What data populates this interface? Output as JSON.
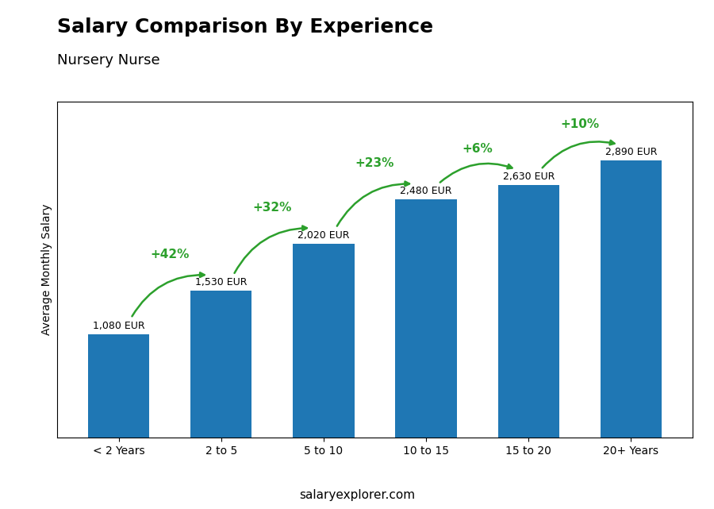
{
  "chart_data": {
    "type": "bar",
    "title": "Salary Comparison By Experience",
    "subtitle": "Nursery Nurse",
    "categories": [
      "< 2 Years",
      "2 to 5",
      "5 to 10",
      "10 to 15",
      "15 to 20",
      "20+ Years"
    ],
    "values": [
      1080,
      1530,
      2020,
      2480,
      2630,
      2890
    ],
    "value_labels": [
      "1,080 EUR",
      "1,530 EUR",
      "2,020 EUR",
      "2,480 EUR",
      "2,630 EUR",
      "2,890 EUR"
    ],
    "data_labels": true,
    "annotations": [
      "+42%",
      "+32%",
      "+23%",
      "+6%",
      "+10%"
    ],
    "y_label": "Average Monthly Salary",
    "footer": "salaryexplorer.com",
    "ylim": [
      0,
      3500
    ],
    "tick_labels": "x",
    "grid": false
  }
}
